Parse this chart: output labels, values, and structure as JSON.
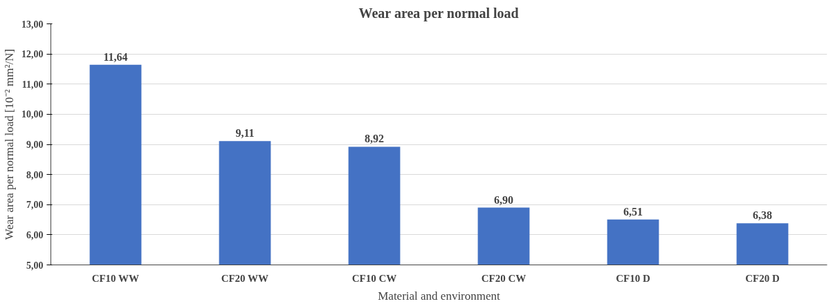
{
  "chart_data": {
    "type": "bar",
    "title": "Wear area per normal load",
    "xlabel": "Material and environment",
    "ylabel": "Wear area per normal load [10⁻² mm²/N]",
    "categories": [
      "CF10 WW",
      "CF20 WW",
      "CF10 CW",
      "CF20 CW",
      "CF10 D",
      "CF20 D"
    ],
    "values": [
      11.64,
      9.11,
      8.92,
      6.9,
      6.51,
      6.38
    ],
    "value_labels": [
      "11,64",
      "9,11",
      "8,92",
      "6,90",
      "6,51",
      "6,38"
    ],
    "color": "#4472c4",
    "ylim": [
      5,
      13
    ],
    "yticks": [
      {
        "value": 5,
        "label": "5,00"
      },
      {
        "value": 6,
        "label": "6,00"
      },
      {
        "value": 7,
        "label": "7,00"
      },
      {
        "value": 8,
        "label": "8,00"
      },
      {
        "value": 9,
        "label": "9,00"
      },
      {
        "value": 10,
        "label": "10,00"
      },
      {
        "value": 11,
        "label": "11,00"
      },
      {
        "value": 12,
        "label": "12,00"
      },
      {
        "value": 13,
        "label": "13,00"
      }
    ],
    "grid": "y"
  }
}
